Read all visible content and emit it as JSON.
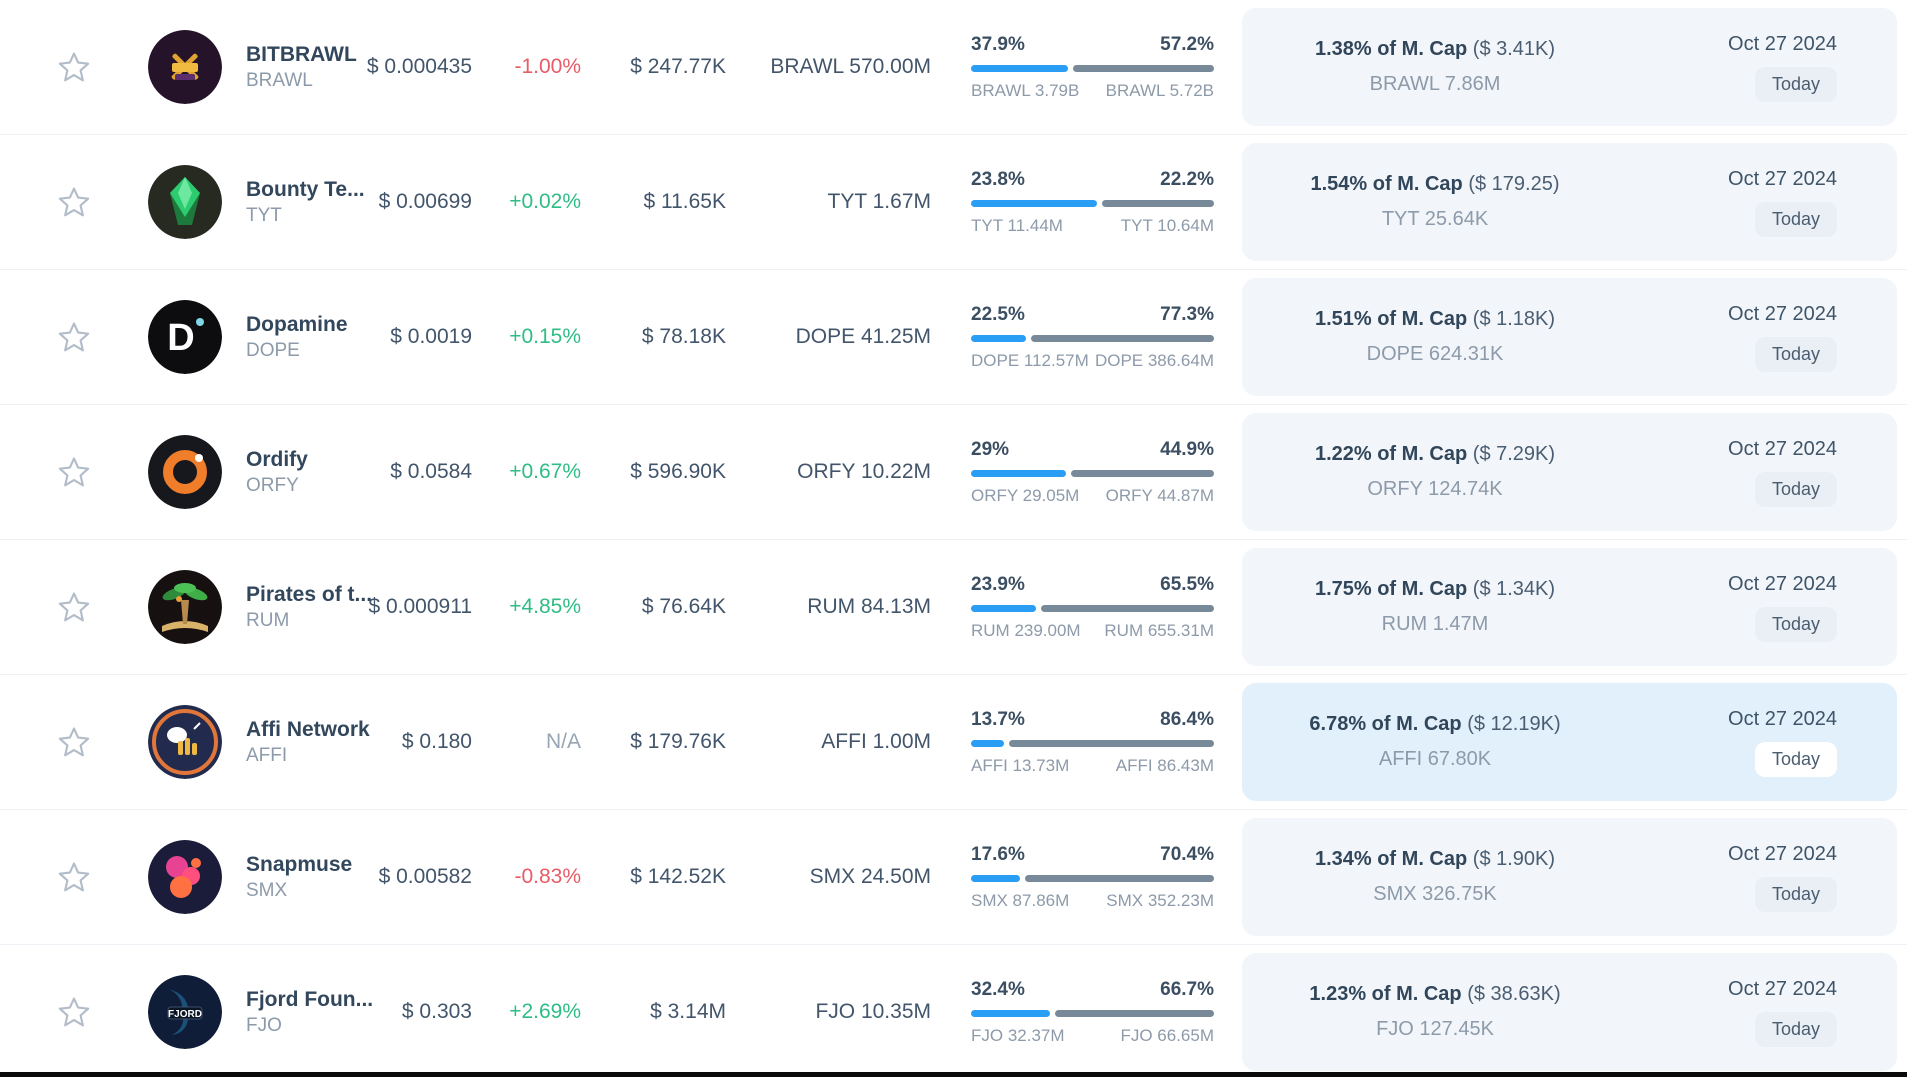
{
  "colors": {
    "bar_fill": "#2a9df4",
    "bar_rest": "#78899a",
    "positive": "#2ebd85",
    "negative": "#e85c67",
    "neutral": "#97a5b4",
    "panel": "#f2f6fa",
    "panel_highlight": "#e2f0fb"
  },
  "rows": [
    {
      "name": "BITBRAWL",
      "symbol": "BRAWL",
      "price": "$ 0.000435",
      "change": "-1.00%",
      "volume": "$ 247.77K",
      "supply": "BRAWL 570.00M",
      "bar": {
        "left_pct": "37.9%",
        "right_pct": "57.2%",
        "left_label": "BRAWL 3.79B",
        "right_label": "BRAWL 5.72B",
        "fill_pct": 39.9
      },
      "mcap_bold": "1.38% of M. Cap",
      "mcap_paren": "($ 3.41K)",
      "mcap_amount": "BRAWL 7.86M",
      "date": "Oct 27 2024",
      "badge": "Today"
    },
    {
      "name": "Bounty Te...",
      "symbol": "TYT",
      "price": "$ 0.00699",
      "change": "+0.02%",
      "volume": "$ 11.65K",
      "supply": "TYT 1.67M",
      "bar": {
        "left_pct": "23.8%",
        "right_pct": "22.2%",
        "left_label": "TYT 11.44M",
        "right_label": "TYT 10.64M",
        "fill_pct": 51.8
      },
      "mcap_bold": "1.54% of M. Cap",
      "mcap_paren": "($ 179.25)",
      "mcap_amount": "TYT 25.64K",
      "date": "Oct 27 2024",
      "badge": "Today"
    },
    {
      "name": "Dopamine",
      "symbol": "DOPE",
      "price": "$ 0.0019",
      "change": "+0.15%",
      "volume": "$ 78.18K",
      "supply": "DOPE 41.25M",
      "bar": {
        "left_pct": "22.5%",
        "right_pct": "77.3%",
        "left_label": "DOPE 112.57M",
        "right_label": "DOPE 386.64M",
        "fill_pct": 22.5
      },
      "mcap_bold": "1.51% of M. Cap",
      "mcap_paren": "($ 1.18K)",
      "mcap_amount": "DOPE 624.31K",
      "date": "Oct 27 2024",
      "badge": "Today"
    },
    {
      "name": "Ordify",
      "symbol": "ORFY",
      "price": "$ 0.0584",
      "change": "+0.67%",
      "volume": "$ 596.90K",
      "supply": "ORFY 10.22M",
      "bar": {
        "left_pct": "29%",
        "right_pct": "44.9%",
        "left_label": "ORFY 29.05M",
        "right_label": "ORFY 44.87M",
        "fill_pct": 39.3
      },
      "mcap_bold": "1.22% of M. Cap",
      "mcap_paren": "($ 7.29K)",
      "mcap_amount": "ORFY 124.74K",
      "date": "Oct 27 2024",
      "badge": "Today"
    },
    {
      "name": "Pirates of t...",
      "symbol": "RUM",
      "price": "$ 0.000911",
      "change": "+4.85%",
      "volume": "$ 76.64K",
      "supply": "RUM 84.13M",
      "bar": {
        "left_pct": "23.9%",
        "right_pct": "65.5%",
        "left_label": "RUM 239.00M",
        "right_label": "RUM 655.31M",
        "fill_pct": 26.7
      },
      "mcap_bold": "1.75% of M. Cap",
      "mcap_paren": "($ 1.34K)",
      "mcap_amount": "RUM 1.47M",
      "date": "Oct 27 2024",
      "badge": "Today"
    },
    {
      "name": "Affi Network",
      "symbol": "AFFI",
      "price": "$ 0.180",
      "change": "N/A",
      "volume": "$ 179.76K",
      "supply": "AFFI 1.00M",
      "bar": {
        "left_pct": "13.7%",
        "right_pct": "86.4%",
        "left_label": "AFFI 13.73M",
        "right_label": "AFFI 86.43M",
        "fill_pct": 13.7
      },
      "mcap_bold": "6.78% of M. Cap",
      "mcap_paren": "($ 12.19K)",
      "mcap_amount": "AFFI 67.80K",
      "date": "Oct 27 2024",
      "badge": "Today"
    },
    {
      "name": "Snapmuse",
      "symbol": "SMX",
      "price": "$ 0.00582",
      "change": "-0.83%",
      "volume": "$ 142.52K",
      "supply": "SMX 24.50M",
      "bar": {
        "left_pct": "17.6%",
        "right_pct": "70.4%",
        "left_label": "SMX 87.86M",
        "right_label": "SMX 352.23M",
        "fill_pct": 20.0
      },
      "mcap_bold": "1.34% of M. Cap",
      "mcap_paren": "($ 1.90K)",
      "mcap_amount": "SMX 326.75K",
      "date": "Oct 27 2024",
      "badge": "Today"
    },
    {
      "name": "Fjord Foun...",
      "symbol": "FJO",
      "price": "$ 0.303",
      "change": "+2.69%",
      "volume": "$ 3.14M",
      "supply": "FJO 10.35M",
      "bar": {
        "left_pct": "32.4%",
        "right_pct": "66.7%",
        "left_label": "FJO 32.37M",
        "right_label": "FJO 66.65M",
        "fill_pct": 32.7
      },
      "mcap_bold": "1.23% of M. Cap",
      "mcap_paren": "($ 38.63K)",
      "mcap_amount": "FJO 127.45K",
      "date": "Oct 27 2024",
      "badge": "Today"
    }
  ]
}
